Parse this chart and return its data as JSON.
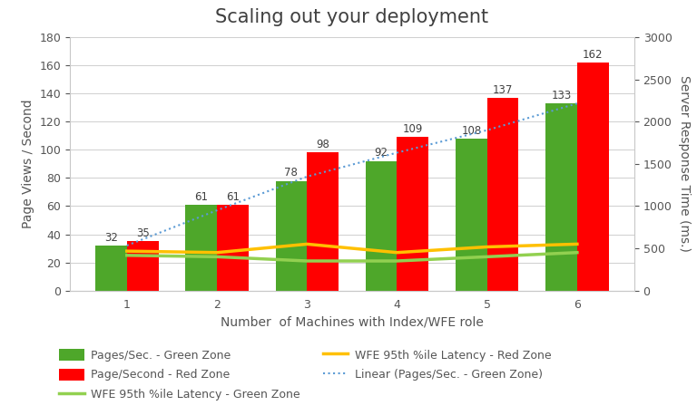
{
  "title": "Scaling out your deployment",
  "xlabel": "Number  of Machines with Index/WFE role",
  "ylabel_left": "Page Views / Second",
  "ylabel_right": "Server Response Time (ms.)",
  "x": [
    1,
    2,
    3,
    4,
    5,
    6
  ],
  "green_bars": [
    32,
    61,
    78,
    92,
    108,
    133
  ],
  "red_bars": [
    35,
    61,
    98,
    109,
    137,
    162
  ],
  "green_latency": [
    25,
    24,
    21,
    21,
    24,
    27
  ],
  "yellow_latency": [
    28,
    27,
    33,
    27,
    31,
    33
  ],
  "linear_green": [
    32,
    57,
    81,
    98,
    114,
    133
  ],
  "ylim_left": [
    0,
    180
  ],
  "ylim_right": [
    0,
    3000
  ],
  "bar_width": 0.35,
  "green_bar_color": "#4EA72A",
  "red_bar_color": "#FF0000",
  "green_line_color": "#92D050",
  "yellow_line_color": "#FFC000",
  "linear_color": "#5B9BD5",
  "background_color": "#FFFFFF",
  "title_fontsize": 15,
  "axis_label_fontsize": 10,
  "tick_fontsize": 9,
  "label_fontsize": 8.5,
  "legend_labels": [
    "Pages/Sec. - Green Zone",
    "Page/Second - Red Zone",
    "WFE 95th %ile Latency - Green Zone",
    "WFE 95th %ile Latency - Red Zone",
    "Linear (Pages/Sec. - Green Zone)"
  ]
}
